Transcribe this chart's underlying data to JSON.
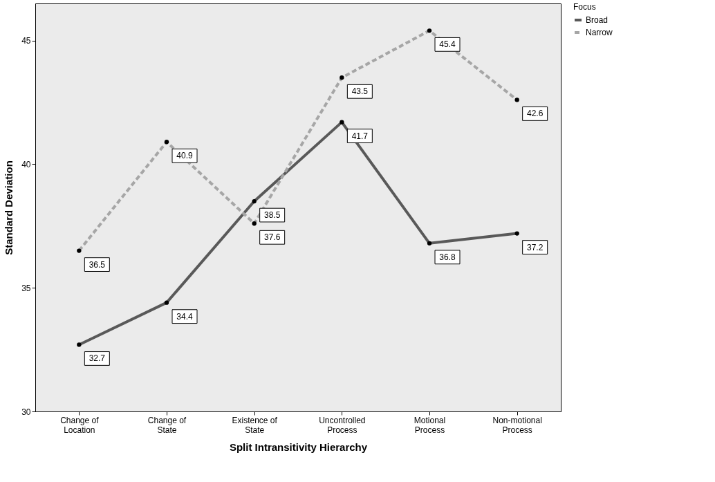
{
  "chart_data": {
    "type": "line",
    "xlabel": "Split Intransitivity Hierarchy",
    "ylabel": "Standard Deviation",
    "legend_title": "Focus",
    "categories": [
      "Change of Location",
      "Change of State",
      "Existence of State",
      "Uncontrolled Process",
      "Motional Process",
      "Non-motional Process"
    ],
    "series": [
      {
        "name": "Broad",
        "color": "#595959",
        "line_style": "solid",
        "values": [
          32.7,
          34.4,
          38.5,
          41.7,
          36.8,
          37.2
        ]
      },
      {
        "name": "Narrow",
        "color": "#a6a6a6",
        "line_style": "dashed",
        "values": [
          36.5,
          40.9,
          37.6,
          43.5,
          45.4,
          42.6
        ]
      }
    ],
    "ylim": [
      30,
      46.5
    ],
    "yticks": [
      30,
      35,
      40,
      45
    ],
    "grid": false,
    "legend": "top right",
    "marker": "circle",
    "data_labels": true
  }
}
